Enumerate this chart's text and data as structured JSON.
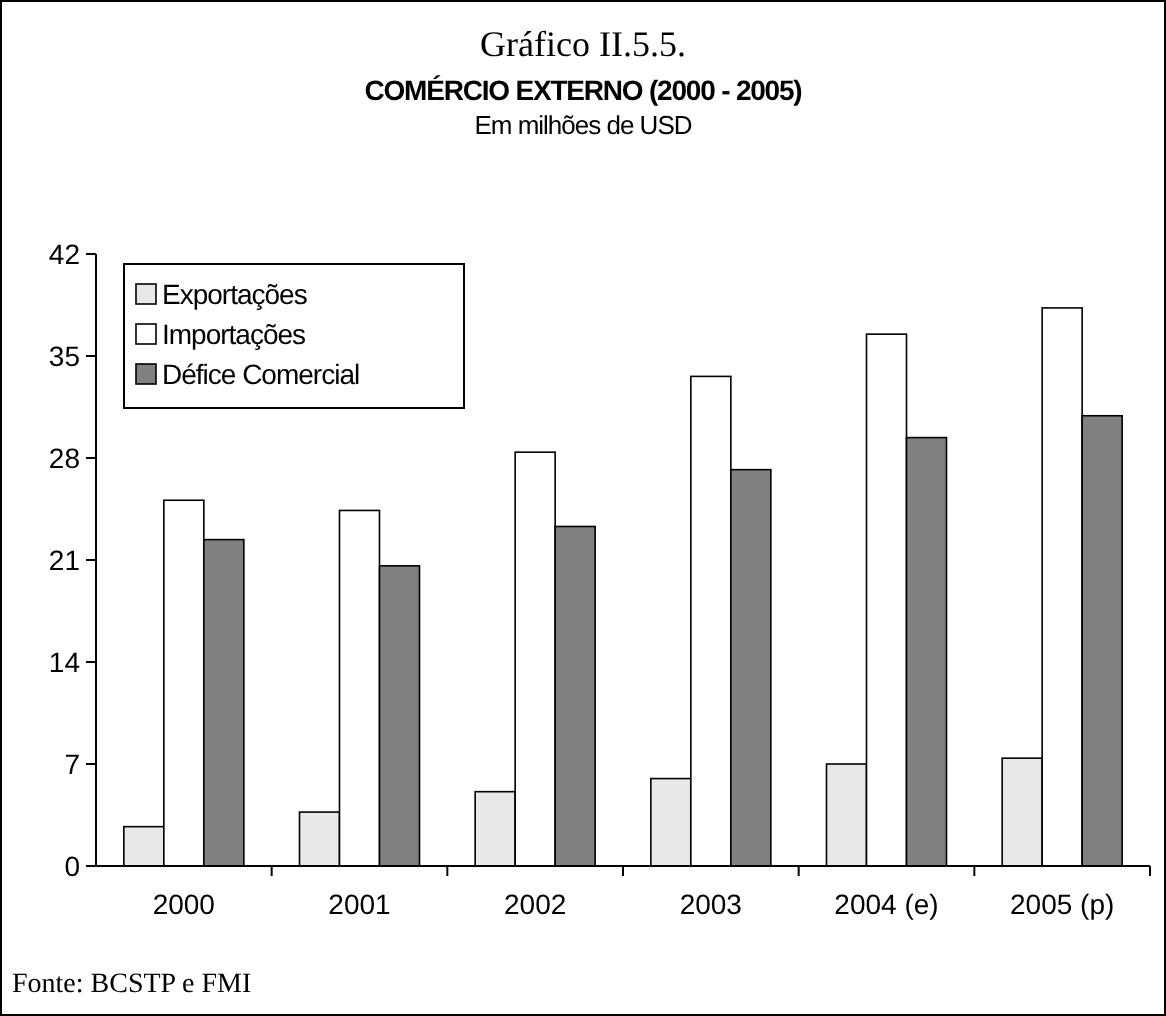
{
  "chart_data": {
    "type": "bar",
    "title": "Gráfico II.5.5.",
    "subtitle": "COMÉRCIO EXTERNO (2000 - 2005)",
    "ylabel": "Em milhões de USD",
    "categories": [
      "2000",
      "2001",
      "2002",
      "2003",
      "2004 (e)",
      "2005 (p)"
    ],
    "series": [
      {
        "name": "Exportações",
        "color": "#e8e8e8",
        "values": [
          2.7,
          3.7,
          5.1,
          6.0,
          7.0,
          7.4
        ]
      },
      {
        "name": "Importações",
        "color": "#ffffff",
        "values": [
          25.1,
          24.4,
          28.4,
          33.6,
          36.5,
          38.3
        ]
      },
      {
        "name": "Défice Comercial",
        "color": "#808080",
        "values": [
          22.4,
          20.6,
          23.3,
          27.2,
          29.4,
          30.9
        ]
      }
    ],
    "ylim": [
      0,
      42
    ],
    "yticks": [
      0,
      7,
      14,
      21,
      28,
      35,
      42
    ],
    "grid": false,
    "legend": "top left",
    "annotations": [
      "Fonte: BCSTP e FMI"
    ]
  }
}
